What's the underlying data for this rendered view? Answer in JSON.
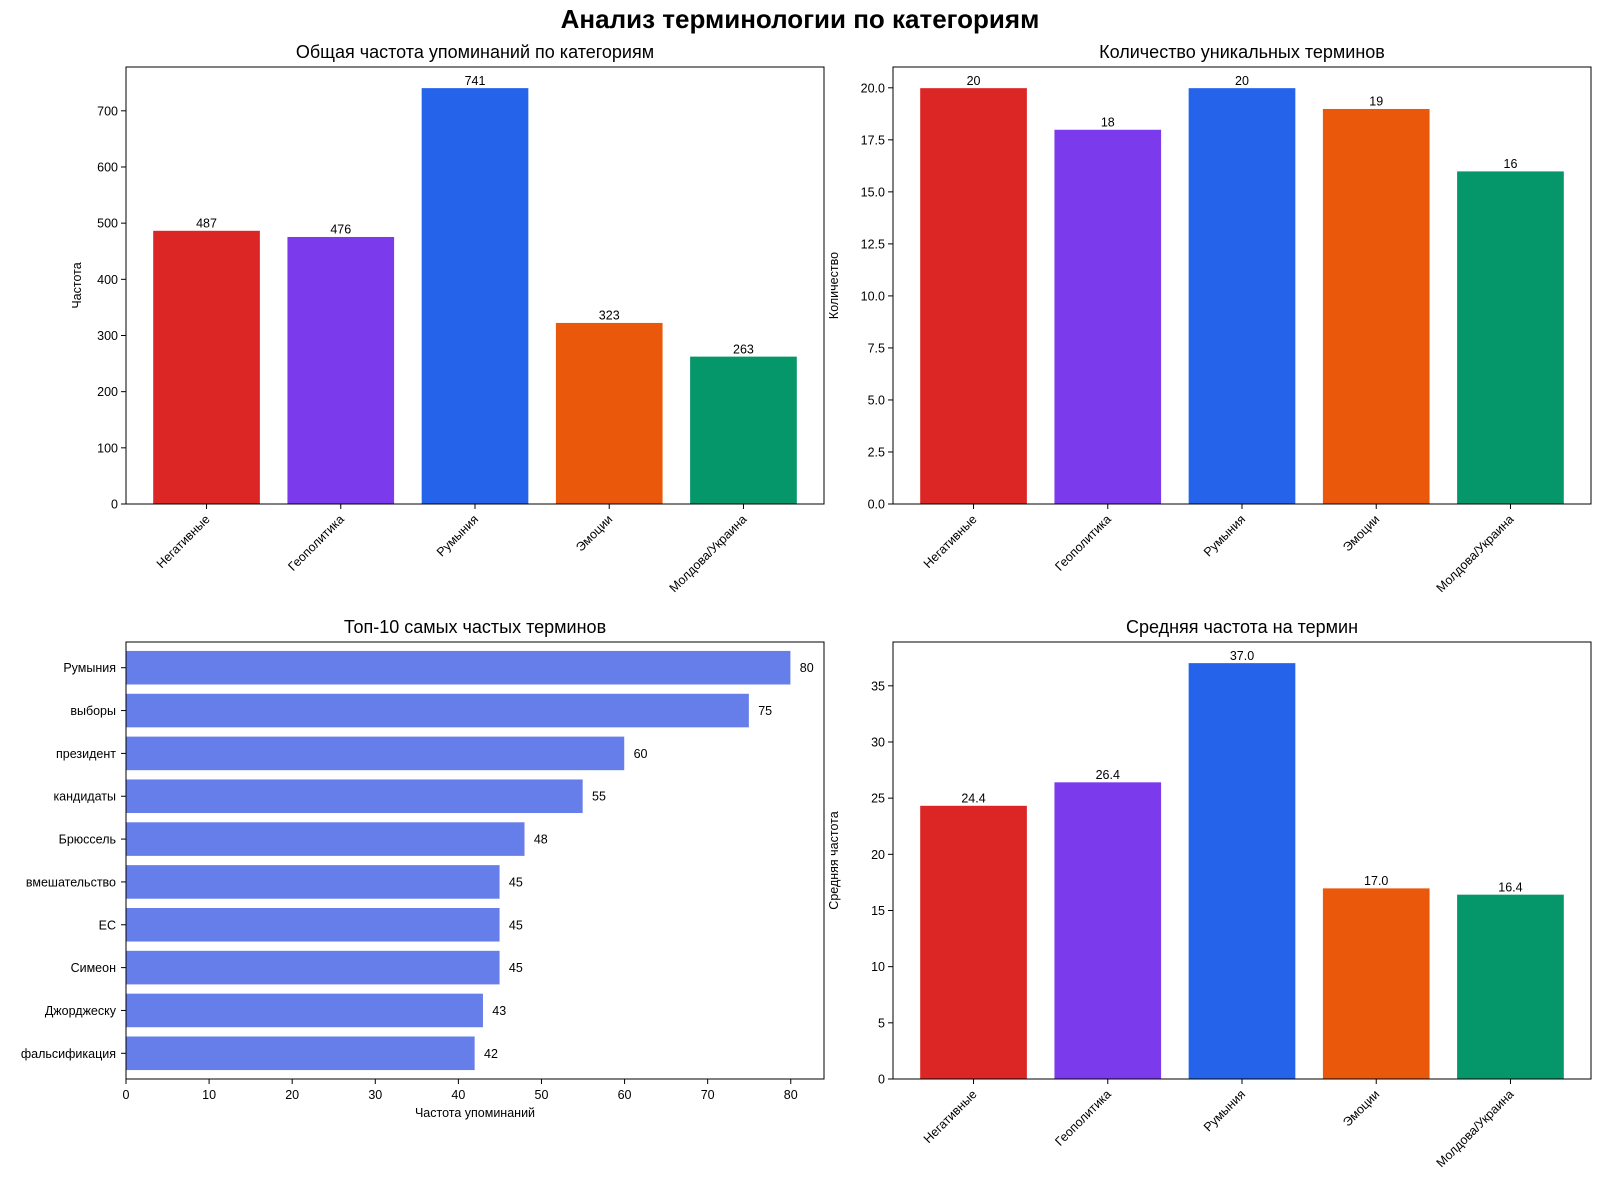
{
  "figure": {
    "title": "Анализ терминологии по категориям"
  },
  "chart_data": [
    {
      "id": "total",
      "type": "bar",
      "title": "Общая частота упоминаний по категориям",
      "xlabel": "",
      "ylabel": "Частота",
      "categories": [
        "Негативные",
        "Геополитика",
        "Румыния",
        "Эмоции",
        "Молдова/Украина"
      ],
      "values": [
        487,
        476,
        741,
        323,
        263
      ],
      "value_labels": [
        "487",
        "476",
        "741",
        "323",
        "263"
      ],
      "colors": [
        "#dc2626",
        "#7c3aed",
        "#2563eb",
        "#ea580c",
        "#059669"
      ],
      "yticks": [
        0,
        100,
        200,
        300,
        400,
        500,
        600,
        700
      ],
      "ytick_labels": [
        "0",
        "100",
        "200",
        "300",
        "400",
        "500",
        "600",
        "700"
      ],
      "ylim": [
        0,
        778
      ],
      "grid": false,
      "xtick_rotation_deg": 45
    },
    {
      "id": "unique",
      "type": "bar",
      "title": "Количество уникальных терминов",
      "xlabel": "",
      "ylabel": "Количество",
      "categories": [
        "Негативные",
        "Геополитика",
        "Румыния",
        "Эмоции",
        "Молдова/Украина"
      ],
      "values": [
        20,
        18,
        20,
        19,
        16
      ],
      "value_labels": [
        "20",
        "18",
        "20",
        "19",
        "16"
      ],
      "colors": [
        "#dc2626",
        "#7c3aed",
        "#2563eb",
        "#ea580c",
        "#059669"
      ],
      "yticks": [
        0,
        2.5,
        5,
        7.5,
        10,
        12.5,
        15,
        17.5,
        20
      ],
      "ytick_labels": [
        "0.0",
        "2.5",
        "5.0",
        "7.5",
        "10.0",
        "12.5",
        "15.0",
        "17.5",
        "20.0"
      ],
      "ylim": [
        0,
        21
      ],
      "grid": false,
      "xtick_rotation_deg": 45
    },
    {
      "id": "top10",
      "type": "bar",
      "orientation": "horizontal",
      "title": "Топ-10 самых частых терминов",
      "xlabel": "Частота упоминаний",
      "ylabel": "",
      "categories": [
        "Румыния",
        "выборы",
        "президент",
        "кандидаты",
        "Брюссель",
        "вмешательство",
        "ЕС",
        "Симеон",
        "Джорджеску",
        "фальсификация"
      ],
      "values": [
        80,
        75,
        60,
        55,
        48,
        45,
        45,
        45,
        43,
        42
      ],
      "value_labels": [
        "80",
        "75",
        "60",
        "55",
        "48",
        "45",
        "45",
        "45",
        "43",
        "42"
      ],
      "color": "#667eea",
      "xticks": [
        0,
        10,
        20,
        30,
        40,
        50,
        60,
        70,
        80
      ],
      "xtick_labels": [
        "0",
        "10",
        "20",
        "30",
        "40",
        "50",
        "60",
        "70",
        "80"
      ],
      "xlim": [
        0,
        84
      ],
      "grid": false
    },
    {
      "id": "avg",
      "type": "bar",
      "title": "Средняя частота на термин",
      "xlabel": "",
      "ylabel": "Средняя частота",
      "categories": [
        "Негативные",
        "Геополитика",
        "Румыния",
        "Эмоции",
        "Молдова/Украина"
      ],
      "values": [
        24.35,
        26.44,
        37.05,
        17.0,
        16.44
      ],
      "value_labels": [
        "24.4",
        "26.4",
        "37.0",
        "17.0",
        "16.4"
      ],
      "colors": [
        "#dc2626",
        "#7c3aed",
        "#2563eb",
        "#ea580c",
        "#059669"
      ],
      "yticks": [
        0,
        5,
        10,
        15,
        20,
        25,
        30,
        35
      ],
      "ytick_labels": [
        "0",
        "5",
        "10",
        "15",
        "20",
        "25",
        "30",
        "35"
      ],
      "ylim": [
        0,
        38.9
      ],
      "grid": false,
      "xtick_rotation_deg": 45
    }
  ]
}
